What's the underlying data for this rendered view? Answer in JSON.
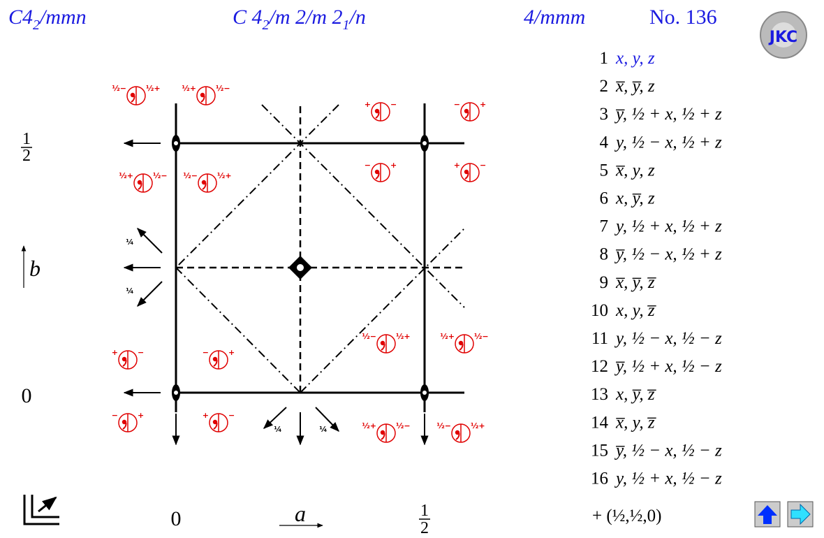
{
  "header": {
    "short_symbol": {
      "base": "C4",
      "sub": "2",
      "rest": "/mmn"
    },
    "full_symbol": {
      "part1": "C 4",
      "sub1": "2",
      "part2": "/m 2/m 2",
      "sub2": "1",
      "part3": "/n"
    },
    "point_group": "4/mmm",
    "number": "No. 136",
    "logo": "JKC"
  },
  "axes": {
    "b_half": {
      "num": "1",
      "den": "2"
    },
    "b_zero": "0",
    "b_label": "b",
    "a_zero": "0",
    "a_label": "a",
    "a_half": {
      "num": "1",
      "den": "2"
    }
  },
  "diagram": {
    "symbols": [
      {
        "left": "½−",
        "right": "½+"
      },
      {
        "left": "½+",
        "right": "½−"
      },
      {
        "left": "+",
        "right": "−"
      },
      {
        "left": "−",
        "right": "+"
      },
      {
        "left": "½+",
        "right": "½−"
      },
      {
        "left": "½−",
        "right": "½+"
      },
      {
        "left": "−",
        "right": "+"
      },
      {
        "left": "+",
        "right": "−"
      },
      {
        "left": "+",
        "right": "−"
      },
      {
        "left": "−",
        "right": "+"
      },
      {
        "left": "½−",
        "right": "½+"
      },
      {
        "left": "½+",
        "right": "½−"
      },
      {
        "left": "−",
        "right": "+"
      },
      {
        "left": "+",
        "right": "−"
      },
      {
        "left": "½+",
        "right": "½−"
      },
      {
        "left": "½−",
        "right": "½+"
      }
    ],
    "quarter_labels": [
      "¼",
      "¼",
      "¼",
      "¼"
    ]
  },
  "coordinates": [
    {
      "n": "1",
      "xyz": "x, y, z"
    },
    {
      "n": "2",
      "xyz": "x̅, y̅, z"
    },
    {
      "n": "3",
      "xyz": "y̅, ½ + x, ½ + z"
    },
    {
      "n": "4",
      "xyz": "y, ½ − x, ½ + z"
    },
    {
      "n": "5",
      "xyz": "x̅, y, z"
    },
    {
      "n": "6",
      "xyz": "x, y̅, z"
    },
    {
      "n": "7",
      "xyz": "y, ½ + x, ½ + z"
    },
    {
      "n": "8",
      "xyz": "y̅, ½ − x, ½ + z"
    },
    {
      "n": "9",
      "xyz": "x̅, y̅, z̅"
    },
    {
      "n": "10",
      "xyz": "x, y, z̅"
    },
    {
      "n": "11",
      "xyz": "y, ½ − x, ½ − z"
    },
    {
      "n": "12",
      "xyz": "y̅, ½ + x, ½ − z"
    },
    {
      "n": "13",
      "xyz": "x, y̅, z̅"
    },
    {
      "n": "14",
      "xyz": "x̅, y, z̅"
    },
    {
      "n": "15",
      "xyz": "y̅, ½ − x, ½ − z"
    },
    {
      "n": "16",
      "xyz": "y, ½ + x, ½ − z"
    }
  ],
  "footer": "+ (½,½,0)"
}
